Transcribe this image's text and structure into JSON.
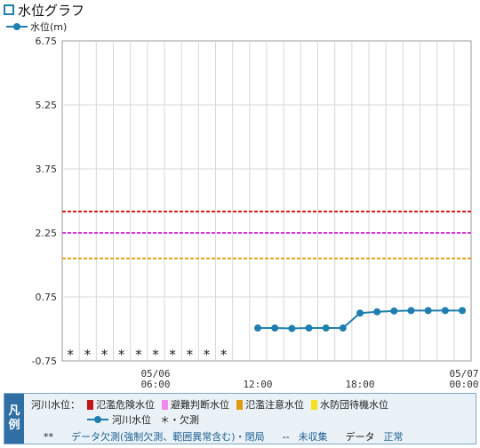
{
  "header": {
    "title": "水位グラフ",
    "legend_label": "水位(m)"
  },
  "chart_data": {
    "type": "line",
    "y_ticks": [
      "6.75",
      "5.25",
      "3.75",
      "2.25",
      "0.75",
      "-0.75"
    ],
    "ylim": [
      -0.75,
      6.75
    ],
    "x_ticks": [
      {
        "date": "05/06",
        "time": "06:00"
      },
      {
        "date": "",
        "time": "12:00"
      },
      {
        "date": "",
        "time": "18:00"
      },
      {
        "date": "05/07",
        "time": "00:00"
      }
    ],
    "grid": true,
    "thresholds": [
      {
        "name": "氾濫危険水位",
        "value": 2.75,
        "color": "#dd1b1b"
      },
      {
        "name": "避難判断水位",
        "value": 2.25,
        "color": "#d43ad4"
      },
      {
        "name": "氾濫注意水位",
        "value": 1.65,
        "color": "#e5a21a"
      }
    ],
    "x_hours": [
      1,
      2,
      3,
      4,
      5,
      6,
      7,
      8,
      9,
      10,
      11,
      12,
      13,
      14,
      15,
      16,
      17,
      18,
      19,
      20,
      21,
      22,
      23,
      24
    ],
    "series": [
      {
        "name": "河川水位",
        "color": "#1e7fb0",
        "values": [
          null,
          null,
          null,
          null,
          null,
          null,
          null,
          null,
          null,
          null,
          null,
          0.02,
          0.02,
          0.01,
          0.02,
          0.02,
          0.02,
          0.37,
          0.4,
          0.42,
          0.43,
          0.43,
          0.43,
          0.43
        ]
      }
    ],
    "missing_hours": [
      1,
      2,
      3,
      4,
      5,
      6,
      7,
      8,
      9,
      10
    ],
    "missing_marker": "*"
  },
  "legend": {
    "tag": [
      "凡",
      "例"
    ],
    "river_level_label": "河川水位：",
    "items": [
      {
        "label": "氾濫危険水位",
        "color": "#c41616"
      },
      {
        "label": "避難判断水位",
        "color": "#ee88ee"
      },
      {
        "label": "氾濫注意水位",
        "color": "#e09a10"
      },
      {
        "label": "水防団待機水位",
        "color": "#f2e21a"
      }
    ],
    "series_label": "河川水位",
    "missing_label": "＊・欠測",
    "notes": {
      "double_star": "**",
      "missing_desc": "データ欠測(強制欠測、範囲異常含む)・閉局",
      "dash": "--",
      "uncollected": "未収集",
      "data_label": "データ",
      "normal": "正常"
    }
  }
}
